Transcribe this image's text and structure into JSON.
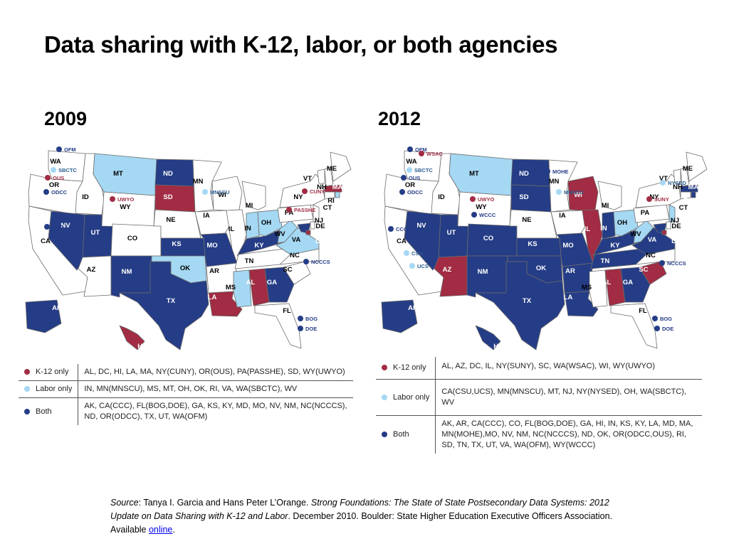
{
  "title": "Data sharing with K-12, labor, or both agencies",
  "colors": {
    "k12": "#a12c43",
    "labor": "#a5d8f3",
    "both": "#253d86",
    "none": "#ffffff",
    "border": "#6b6b6b"
  },
  "legend_labels": {
    "k12": "K-12 only",
    "labor": "Labor only",
    "both": "Both"
  },
  "maps": [
    {
      "year": "2009",
      "legend": {
        "k12": "AL, DC, HI, LA, MA, NY(CUNY), OR(OUS), PA(PASSHE), SD, WY(UWYO)",
        "labor": "IN, MN(MNSCU), MS, MT, OH, OK, RI, VA, WA(SBCTC), WV",
        "both": "AK, CA(CCC), FL(BOG,DOE), GA, KS, KY, MD, MO, NV, NM, NC(NCCCS), ND, OR(ODCC), TX, UT, WA(OFM)"
      },
      "states": {
        "WA": "none",
        "OR": "none",
        "CA": "none",
        "ID": "none",
        "NV": "both",
        "UT": "both",
        "AZ": "none",
        "MT": "labor",
        "WY": "none",
        "CO": "none",
        "NM": "both",
        "ND": "both",
        "SD": "k12",
        "NE": "none",
        "KS": "both",
        "OK": "labor",
        "TX": "both",
        "MN": "none",
        "IA": "none",
        "MO": "both",
        "AR": "none",
        "LA": "k12",
        "WI": "none",
        "IL": "none",
        "MI": "none",
        "IN": "labor",
        "OH": "labor",
        "KY": "both",
        "TN": "none",
        "MS": "labor",
        "AL": "k12",
        "GA": "both",
        "FL": "none",
        "SC": "none",
        "NC": "none",
        "VA": "labor",
        "WV": "labor",
        "PA": "none",
        "NY": "none",
        "VT": "none",
        "NH": "none",
        "ME": "none",
        "MA": "k12",
        "RI": "labor",
        "CT": "none",
        "NJ": "none",
        "DE": "none",
        "MD": "both",
        "DC": "k12",
        "AK": "both",
        "HI": "k12"
      },
      "systems": [
        {
          "label": "OFM",
          "type": "both"
        },
        {
          "label": "SBCTC",
          "type": "labor"
        },
        {
          "label": "OUS",
          "type": "k12"
        },
        {
          "label": "ODCC",
          "type": "both"
        },
        {
          "label": "CCC",
          "type": "both"
        },
        {
          "label": "UWYO",
          "type": "k12"
        },
        {
          "label": "MNSCU",
          "type": "labor"
        },
        {
          "label": "CUNY",
          "type": "k12"
        },
        {
          "label": "PASSHE",
          "type": "k12"
        },
        {
          "label": "NCCCS",
          "type": "both"
        },
        {
          "label": "BOG",
          "type": "both"
        },
        {
          "label": "DOE",
          "type": "both"
        }
      ]
    },
    {
      "year": "2012",
      "legend": {
        "k12": "AL, AZ, DC, IL, NY(SUNY), SC, WA(WSAC), WI, WY(UWYO)",
        "labor": "CA(CSU,UCS), MN(MNSCU), MT, NJ, NY(NYSED), OH, WA(SBCTC), WV",
        "both": "AK, AR, CA(CCC), CO, FL(BOG,DOE), GA, HI, IN, KS, KY, LA, MD, MA, MN(MOHE),MO, NV, NM, NC(NCCCS), ND, OK, OR(ODCC,OUS), RI, SD, TN, TX, UT, VA, WA(OFM), WY(WCCC)"
      },
      "states": {
        "WA": "none",
        "OR": "none",
        "CA": "none",
        "ID": "none",
        "NV": "both",
        "UT": "both",
        "AZ": "k12",
        "MT": "labor",
        "WY": "none",
        "CO": "both",
        "NM": "both",
        "ND": "both",
        "SD": "both",
        "NE": "none",
        "KS": "both",
        "OK": "both",
        "TX": "both",
        "MN": "none",
        "IA": "none",
        "MO": "both",
        "AR": "both",
        "LA": "both",
        "WI": "k12",
        "IL": "k12",
        "MI": "none",
        "IN": "both",
        "OH": "labor",
        "KY": "both",
        "TN": "both",
        "MS": "none",
        "AL": "k12",
        "GA": "both",
        "FL": "none",
        "SC": "k12",
        "NC": "none",
        "VA": "both",
        "WV": "labor",
        "PA": "none",
        "NY": "none",
        "VT": "none",
        "NH": "none",
        "ME": "none",
        "MA": "both",
        "RI": "both",
        "CT": "none",
        "NJ": "labor",
        "DE": "none",
        "MD": "both",
        "DC": "k12",
        "AK": "both",
        "HI": "both"
      },
      "systems": [
        {
          "label": "OFM",
          "type": "both"
        },
        {
          "label": "WSAC",
          "type": "k12"
        },
        {
          "label": "SBCTC",
          "type": "labor"
        },
        {
          "label": "OUS",
          "type": "both"
        },
        {
          "label": "ODCC",
          "type": "both"
        },
        {
          "label": "CCC",
          "type": "both"
        },
        {
          "label": "CSU",
          "type": "labor"
        },
        {
          "label": "UCS",
          "type": "labor"
        },
        {
          "label": "UWYO",
          "type": "k12"
        },
        {
          "label": "WCCC",
          "type": "both"
        },
        {
          "label": "MOHE",
          "type": "both"
        },
        {
          "label": "MNSCU",
          "type": "labor"
        },
        {
          "label": "NYSED",
          "type": "labor"
        },
        {
          "label": "SUNY",
          "type": "k12"
        },
        {
          "label": "NCCCS",
          "type": "both"
        },
        {
          "label": "BOG",
          "type": "both"
        },
        {
          "label": "DOE",
          "type": "both"
        }
      ]
    }
  ],
  "source": {
    "label": "Source",
    "authors": ": Tanya I. Garcia and Hans Peter L’Orange. ",
    "work": "Strong Foundations: The State of State Postsecondary Data Systems: 2012 Update on Data Sharing with K-12 and Labor",
    "rest": ". December 2010. Boulder: State Higher Education Executive Officers Association. Available ",
    "link": "online",
    "end": "."
  }
}
